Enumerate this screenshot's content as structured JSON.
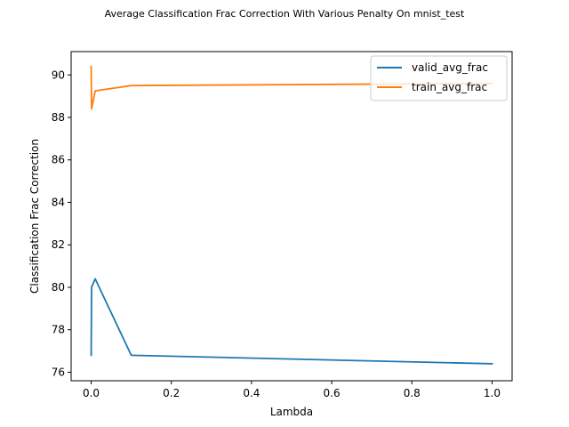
{
  "chart_data": {
    "type": "line",
    "title": "Average Classification Frac Correction With Various Penalty On mnist_test",
    "xlabel": "Lambda",
    "ylabel": "Classification Frac Correction",
    "xlim": [
      -0.05,
      1.05
    ],
    "ylim": [
      75.6,
      91.1
    ],
    "xticks": [
      0.0,
      0.2,
      0.4,
      0.6,
      0.8,
      1.0
    ],
    "xtick_labels": [
      "0.0",
      "0.2",
      "0.4",
      "0.6",
      "0.8",
      "1.0"
    ],
    "yticks": [
      76,
      78,
      80,
      82,
      84,
      86,
      88,
      90
    ],
    "ytick_labels": [
      "76",
      "78",
      "80",
      "82",
      "84",
      "86",
      "88",
      "90"
    ],
    "grid": false,
    "legend_position": "top-right",
    "series": [
      {
        "name": "valid_avg_frac",
        "color": "#1f77b4",
        "x": [
          0.0,
          0.001,
          0.01,
          0.03,
          0.1,
          1.0
        ],
        "y": [
          76.8,
          80.0,
          80.4,
          79.6,
          76.8,
          76.4
        ]
      },
      {
        "name": "train_avg_frac",
        "color": "#ff7f0e",
        "x": [
          0.0,
          0.001,
          0.01,
          0.1,
          1.0
        ],
        "y": [
          90.4,
          88.4,
          89.25,
          89.5,
          89.6
        ]
      }
    ]
  }
}
